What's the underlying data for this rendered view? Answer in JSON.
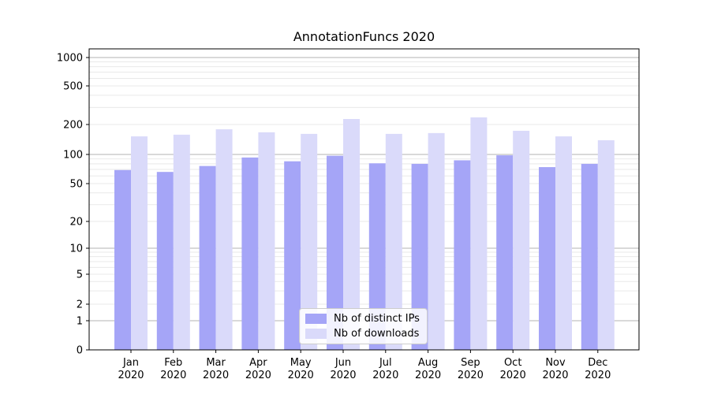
{
  "chart_data": {
    "type": "bar",
    "title": "AnnotationFuncs 2020",
    "categories": [
      "Jan 2020",
      "Feb 2020",
      "Mar 2020",
      "Apr 2020",
      "May 2020",
      "Jun 2020",
      "Jul 2020",
      "Aug 2020",
      "Sep 2020",
      "Oct 2020",
      "Nov 2020",
      "Dec 2020"
    ],
    "series": [
      {
        "name": "Nb of distinct IPs",
        "color": "#a5a5f7",
        "values": [
          69,
          66,
          76,
          93,
          85,
          97,
          81,
          80,
          87,
          98,
          74,
          80
        ]
      },
      {
        "name": "Nb of downloads",
        "color": "#dadafa",
        "values": [
          152,
          158,
          179,
          167,
          161,
          228,
          161,
          164,
          237,
          173,
          152,
          139
        ]
      }
    ],
    "y_axis": {
      "scale": "symlog",
      "ticks": [
        0,
        1,
        2,
        5,
        10,
        20,
        50,
        100,
        200,
        500,
        1000
      ],
      "range": [
        0,
        1000
      ]
    },
    "x_axis": {
      "tick_labels_two_lines": true
    },
    "legend": {
      "position": "lower-center"
    },
    "grid": {
      "enabled": true,
      "major_color": "#b3b3b3",
      "minor_color": "#e9e9e9"
    },
    "colors": {
      "spine": "#000000",
      "tick_label": "#000000",
      "background": "#ffffff"
    }
  }
}
